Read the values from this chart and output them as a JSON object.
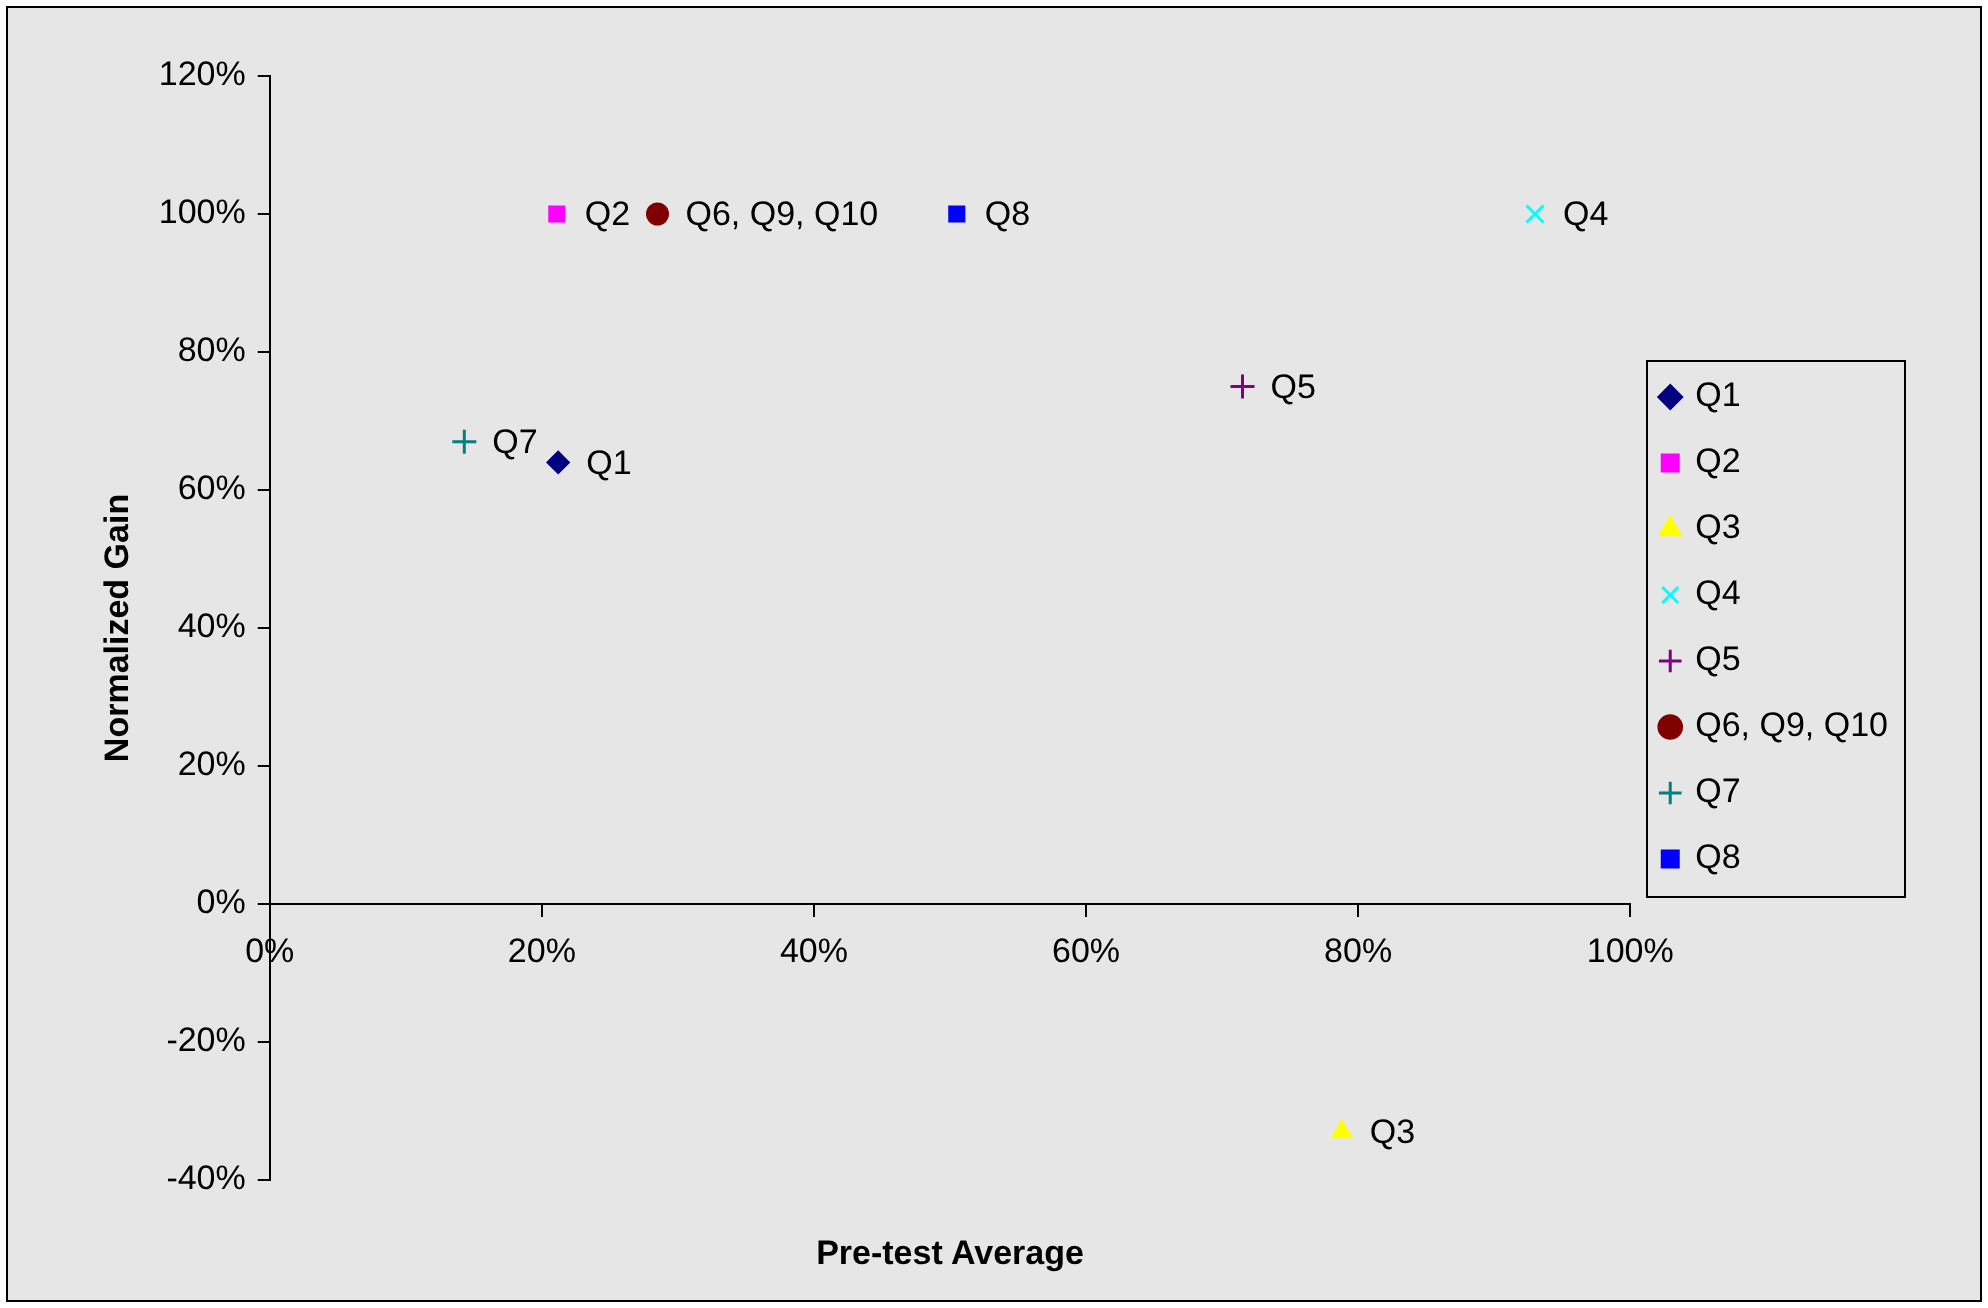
{
  "chart_data": {
    "type": "scatter",
    "xlabel": "Pre-test Average",
    "ylabel": "Normalized Gain",
    "xlim": [
      0,
      100
    ],
    "ylim": [
      -40,
      120
    ],
    "xticks": [
      {
        "value": 0,
        "label": "0%"
      },
      {
        "value": 20,
        "label": "20%"
      },
      {
        "value": 40,
        "label": "40%"
      },
      {
        "value": 60,
        "label": "60%"
      },
      {
        "value": 80,
        "label": "80%"
      },
      {
        "value": 100,
        "label": "100%"
      }
    ],
    "yticks": [
      {
        "value": -40,
        "label": "-40%"
      },
      {
        "value": -20,
        "label": "-20%"
      },
      {
        "value": 0,
        "label": "0%"
      },
      {
        "value": 20,
        "label": "20%"
      },
      {
        "value": 40,
        "label": "40%"
      },
      {
        "value": 60,
        "label": "60%"
      },
      {
        "value": 80,
        "label": "80%"
      },
      {
        "value": 100,
        "label": "100%"
      },
      {
        "value": 120,
        "label": "120%"
      }
    ],
    "grid": false,
    "legend": "right",
    "series": [
      {
        "name": "Q1",
        "color": "#000080",
        "marker": "diamond",
        "x": [
          21.2
        ],
        "values": [
          64
        ]
      },
      {
        "name": "Q2",
        "color": "#ff00ff",
        "marker": "square",
        "x": [
          21.1
        ],
        "values": [
          100
        ]
      },
      {
        "name": "Q3",
        "color": "#ffff00",
        "marker": "triangle",
        "x": [
          78.8
        ],
        "values": [
          -33
        ]
      },
      {
        "name": "Q4",
        "color": "#00ffff",
        "marker": "x",
        "x": [
          93
        ],
        "values": [
          100
        ]
      },
      {
        "name": "Q5",
        "color": "#800080",
        "marker": "cross",
        "x": [
          71.5
        ],
        "values": [
          75
        ]
      },
      {
        "name": "Q6, Q9, Q10",
        "color": "#800000",
        "marker": "circle",
        "x": [
          28.5
        ],
        "values": [
          100
        ]
      },
      {
        "name": "Q7",
        "color": "#008080",
        "marker": "cross",
        "x": [
          14.3
        ],
        "values": [
          67
        ]
      },
      {
        "name": "Q8",
        "color": "#0000ff",
        "marker": "square",
        "x": [
          50.5
        ],
        "values": [
          100
        ]
      }
    ]
  }
}
